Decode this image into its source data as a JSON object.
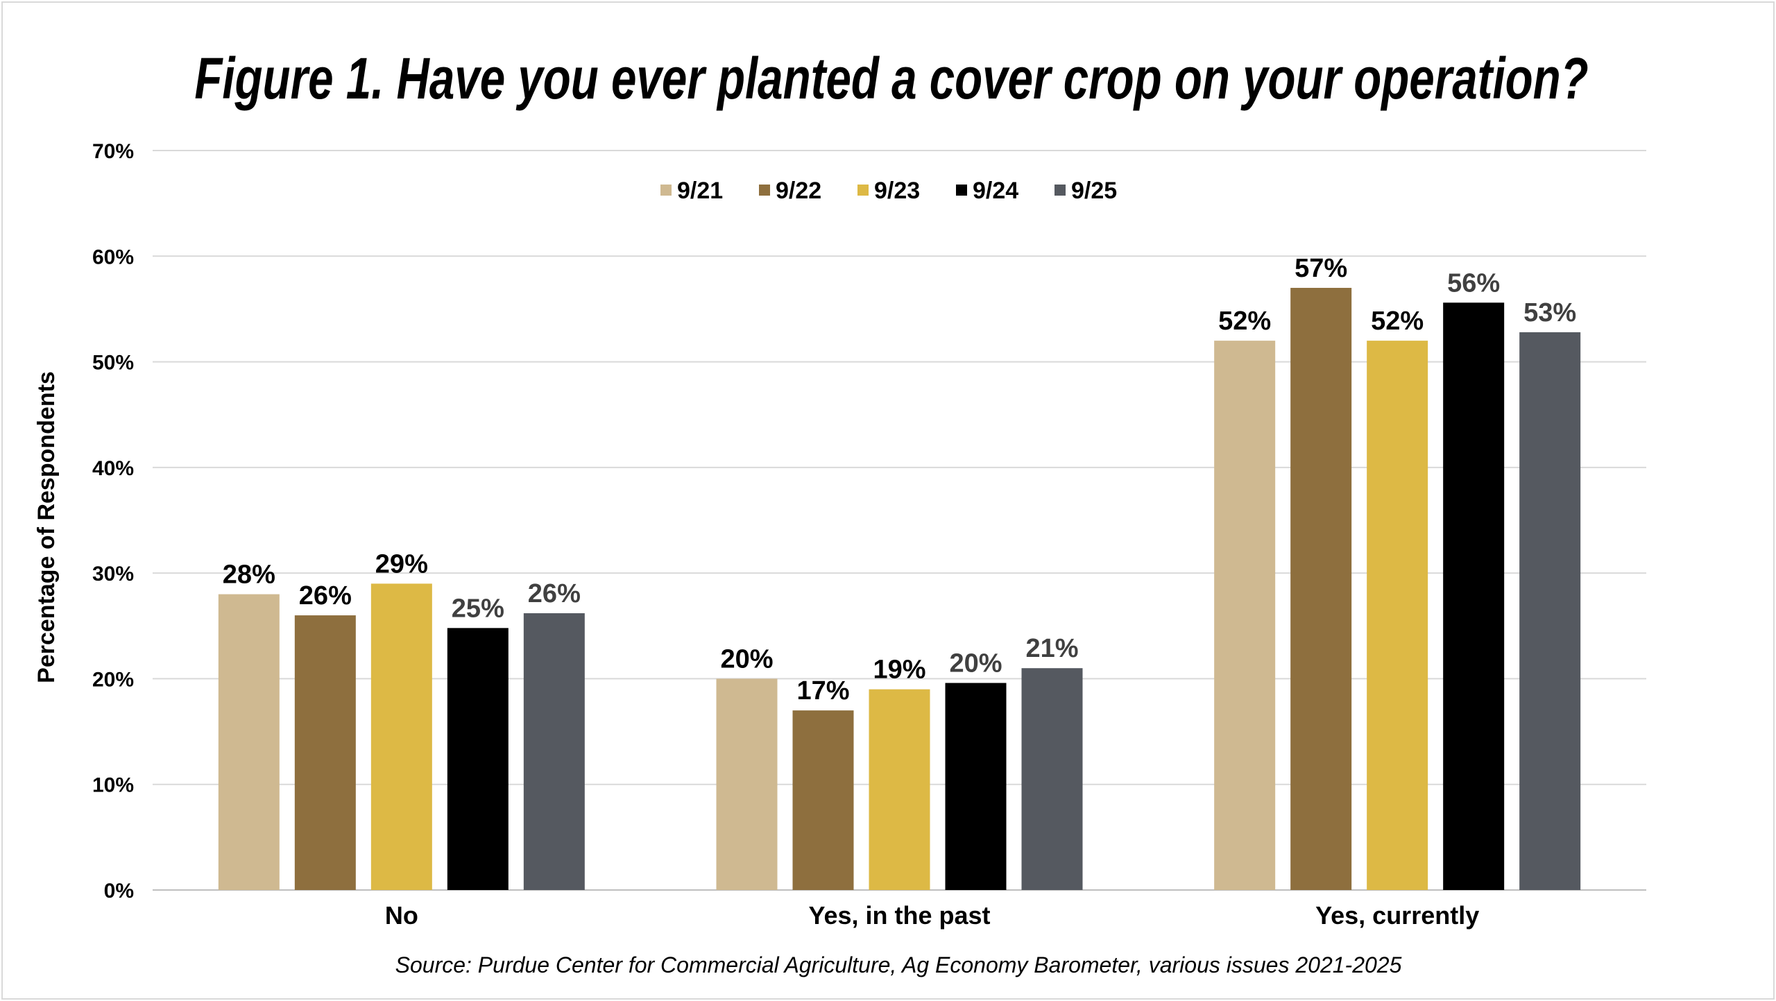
{
  "chart_data": {
    "type": "bar",
    "title": "Figure 1. Have you ever planted a cover crop on your operation?",
    "ylabel": "Percentage of Respondents",
    "xlabel": "",
    "ylim": [
      0,
      70
    ],
    "yticks": [
      "0%",
      "10%",
      "20%",
      "30%",
      "40%",
      "50%",
      "60%",
      "70%"
    ],
    "grid": true,
    "legend_position": "top-center",
    "categories": [
      "No",
      "Yes, in the past",
      "Yes, currently"
    ],
    "series": [
      {
        "name": "9/21",
        "color": "#CFB991",
        "label_color": "#000000",
        "values": [
          28,
          20,
          52
        ],
        "labels": [
          "28%",
          "20%",
          "52%"
        ]
      },
      {
        "name": "9/22",
        "color": "#8E6F3E",
        "label_color": "#000000",
        "values": [
          26,
          17,
          57
        ],
        "labels": [
          "26%",
          "17%",
          "57%"
        ]
      },
      {
        "name": "9/23",
        "color": "#DDB945",
        "label_color": "#000000",
        "values": [
          29,
          19,
          52
        ],
        "labels": [
          "29%",
          "19%",
          "52%"
        ]
      },
      {
        "name": "9/24",
        "color": "#000000",
        "label_color": "#404040",
        "values": [
          24.8,
          19.6,
          55.6
        ],
        "labels": [
          "25%",
          "20%",
          "56%"
        ]
      },
      {
        "name": "9/25",
        "color": "#555960",
        "label_color": "#404040",
        "values": [
          26.2,
          21,
          52.8
        ],
        "labels": [
          "26%",
          "21%",
          "53%"
        ]
      }
    ],
    "source": "Source:  Purdue Center for Commercial Agriculture, Ag Economy Barometer, various issues 2021-2025"
  }
}
